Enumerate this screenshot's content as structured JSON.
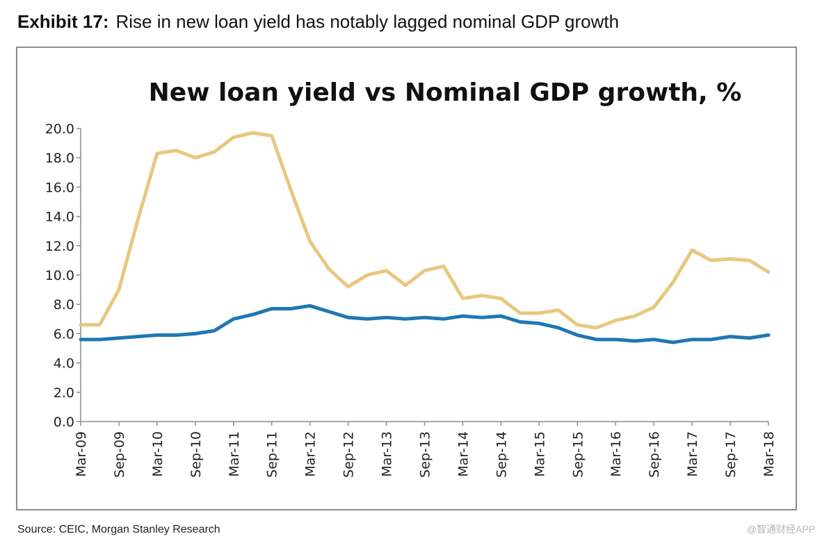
{
  "header": {
    "exhibit_number": "Exhibit 17:",
    "exhibit_title": "Rise in new loan yield has notably lagged nominal GDP growth"
  },
  "footer": {
    "source": "Source: CEIC, Morgan Stanley Research",
    "watermark": "@智通财经APP"
  },
  "chart_data": {
    "type": "line",
    "title": "New loan yield vs Nominal GDP growth, %",
    "xlabel": "",
    "ylabel": "",
    "ylim": [
      0,
      20
    ],
    "y_ticks": [
      "0.0",
      "2.0",
      "4.0",
      "6.0",
      "8.0",
      "10.0",
      "12.0",
      "14.0",
      "16.0",
      "18.0",
      "20.0"
    ],
    "grid": false,
    "x": [
      "Mar-09",
      "Jun-09",
      "Sep-09",
      "Dec-09",
      "Mar-10",
      "Jun-10",
      "Sep-10",
      "Dec-10",
      "Mar-11",
      "Jun-11",
      "Sep-11",
      "Dec-11",
      "Mar-12",
      "Jun-12",
      "Sep-12",
      "Dec-12",
      "Mar-13",
      "Jun-13",
      "Sep-13",
      "Dec-13",
      "Mar-14",
      "Jun-14",
      "Sep-14",
      "Dec-14",
      "Mar-15",
      "Jun-15",
      "Sep-15",
      "Dec-15",
      "Mar-16",
      "Jun-16",
      "Sep-16",
      "Dec-16",
      "Mar-17",
      "Jun-17",
      "Sep-17",
      "Dec-17",
      "Mar-18"
    ],
    "x_tick_labels": [
      "Mar-09",
      "Sep-09",
      "Mar-10",
      "Sep-10",
      "Mar-11",
      "Sep-11",
      "Mar-12",
      "Sep-12",
      "Mar-13",
      "Sep-13",
      "Mar-14",
      "Sep-14",
      "Mar-15",
      "Sep-15",
      "Mar-16",
      "Sep-16",
      "Mar-17",
      "Sep-17",
      "Mar-18"
    ],
    "series": [
      {
        "color": "#e8c77f",
        "values": [
          6.6,
          6.6,
          9.0,
          13.8,
          18.3,
          18.5,
          18.0,
          18.4,
          19.4,
          19.7,
          19.5,
          15.8,
          12.3,
          10.4,
          9.2,
          10.0,
          10.3,
          9.3,
          10.3,
          10.6,
          8.4,
          8.6,
          8.4,
          7.4,
          7.4,
          7.6,
          6.6,
          6.4,
          6.9,
          7.2,
          7.8,
          9.5,
          11.7,
          11.0,
          11.1,
          11.0,
          10.2
        ]
      },
      {
        "color": "#1f77b4",
        "values": [
          5.6,
          5.6,
          5.7,
          5.8,
          5.9,
          5.9,
          6.0,
          6.2,
          7.0,
          7.3,
          7.7,
          7.7,
          7.9,
          7.5,
          7.1,
          7.0,
          7.1,
          7.0,
          7.1,
          7.0,
          7.2,
          7.1,
          7.2,
          6.8,
          6.7,
          6.4,
          5.9,
          5.6,
          5.6,
          5.5,
          5.6,
          5.4,
          5.6,
          5.6,
          5.8,
          5.7,
          5.9
        ]
      }
    ]
  }
}
